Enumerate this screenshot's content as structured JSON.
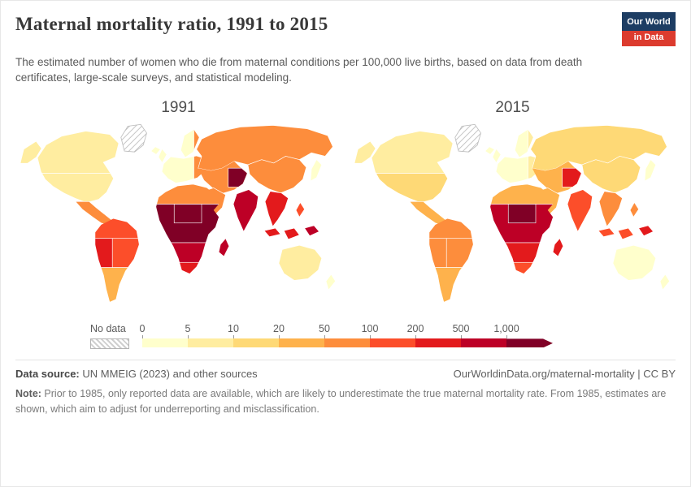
{
  "header": {
    "title": "Maternal mortality ratio, 1991 to 2015",
    "subtitle": "The estimated number of women who die from maternal conditions per 100,000 live births, based on data from death certificates, large-scale surveys, and statistical modeling.",
    "logo": {
      "line1": "Our World",
      "line2": "in Data",
      "bg": "#1d3d63",
      "accent": "#dc3b2e"
    }
  },
  "maps": [
    {
      "year": "1991",
      "regions": {
        "greenland": "nodata",
        "canada": "#ffeda0",
        "usa": "#ffeda0",
        "mexico": "#fd8d3c",
        "sa_north": "#fc4e2a",
        "sa_west": "#e31a1c",
        "sa_east": "#fc4e2a",
        "sa_south": "#feb24c",
        "iceland": "#ffffcc",
        "europe_west": "#ffffcc",
        "europe_east": "#fd8d3c",
        "russia": "#fd8d3c",
        "west_asia": "#fd8d3c",
        "afghanistan": "#800026",
        "arabia": "#fd8d3c",
        "india": "#bd0026",
        "china": "#fd8d3c",
        "se_asia": "#e31a1c",
        "indonesia": "#e31a1c",
        "new_guinea": "#bd0026",
        "philippines": "#fc4e2a",
        "japan": "#ffffcc",
        "africa_north": "#fd8d3c",
        "africa_mid": "#800026",
        "africa_patch": "#800026",
        "africa_lower": "#bd0026",
        "africa_south": "#e31a1c",
        "madagascar": "#bd0026",
        "australia": "#ffeda0",
        "new_zealand": "#ffffcc"
      }
    },
    {
      "year": "2015",
      "regions": {
        "greenland": "nodata",
        "canada": "#ffeda0",
        "usa": "#fed976",
        "mexico": "#feb24c",
        "sa_north": "#fd8d3c",
        "sa_west": "#fd8d3c",
        "sa_east": "#fd8d3c",
        "sa_south": "#feb24c",
        "iceland": "#ffffcc",
        "europe_west": "#ffffcc",
        "europe_east": "#ffeda0",
        "russia": "#fed976",
        "west_asia": "#feb24c",
        "afghanistan": "#e31a1c",
        "arabia": "#feb24c",
        "india": "#fc4e2a",
        "china": "#fed976",
        "se_asia": "#fd8d3c",
        "indonesia": "#fc4e2a",
        "new_guinea": "#e31a1c",
        "philippines": "#fd8d3c",
        "japan": "#ffffcc",
        "africa_north": "#feb24c",
        "africa_mid": "#bd0026",
        "africa_patch": "#800026",
        "africa_lower": "#e31a1c",
        "africa_south": "#fc4e2a",
        "madagascar": "#e31a1c",
        "australia": "#ffffcc",
        "new_zealand": "#ffffcc"
      }
    }
  ],
  "legend": {
    "no_data_label": "No data",
    "ticks": [
      "0",
      "5",
      "10",
      "20",
      "50",
      "100",
      "200",
      "500",
      "1,000"
    ],
    "colors": [
      "#ffffcc",
      "#ffeda0",
      "#fed976",
      "#feb24c",
      "#fd8d3c",
      "#fc4e2a",
      "#e31a1c",
      "#bd0026",
      "#800026"
    ]
  },
  "footer": {
    "source_label": "Data source:",
    "source_text": " UN MMEIG (2023) and other sources",
    "cc_text": "OurWorldinData.org/maternal-mortality | CC BY",
    "note_label": "Note:",
    "note_text": " Prior to 1985, only reported data are available, which are likely to underestimate the true maternal mortality rate. From 1985, estimates are shown, which aim to adjust for underreporting and misclassification."
  },
  "chart_data": {
    "type": "choropleth_map",
    "title": "Maternal mortality ratio, 1991 to 2015",
    "unit": "maternal deaths per 100,000 live births",
    "years": [
      "1991",
      "2015"
    ],
    "legend_position": "bottom",
    "bins": [
      {
        "label": "0–5",
        "color": "#ffffcc"
      },
      {
        "label": "5–10",
        "color": "#ffeda0"
      },
      {
        "label": "10–20",
        "color": "#fed976"
      },
      {
        "label": "20–50",
        "color": "#feb24c"
      },
      {
        "label": "50–100",
        "color": "#fd8d3c"
      },
      {
        "label": "100–200",
        "color": "#fc4e2a"
      },
      {
        "label": "200–500",
        "color": "#e31a1c"
      },
      {
        "label": "500–1,000",
        "color": "#bd0026"
      },
      {
        "label": "1,000+",
        "color": "#800026"
      },
      {
        "label": "No data",
        "color": "hatched"
      }
    ],
    "region_bins": {
      "1991": {
        "Canada / United States": "5–10",
        "Mexico & Central America": "50–100",
        "Northern South America": "100–200",
        "Andean South America": "200–500",
        "Brazil": "100–200",
        "Argentina & Southern Cone": "20–50",
        "Western Europe": "0–5",
        "Eastern Europe": "50–100",
        "Russia": "50–100",
        "Central Asia & Iran": "50–100",
        "Afghanistan": "1,000+",
        "Arabian Peninsula": "50–100",
        "India": "500–1,000",
        "China": "50–100",
        "Southeast Asia": "200–500",
        "Indonesia": "200–500",
        "Papua New Guinea": "500–1,000",
        "Philippines": "100–200",
        "Japan": "0–5",
        "North Africa": "50–100",
        "West & Central Africa": "1,000+",
        "Eastern & Southern Africa": "500–1,000",
        "South Africa": "200–500",
        "Madagascar": "500–1,000",
        "Australia & New Zealand": "0–10",
        "Greenland": "No data"
      },
      "2015": {
        "Canada": "5–10",
        "United States": "10–20",
        "Mexico & Central America": "20–50",
        "South America": "50–100",
        "Argentina & Southern Cone": "20–50",
        "Western Europe": "0–5",
        "Eastern Europe": "5–10",
        "Russia": "10–20",
        "Central Asia & Iran": "20–50",
        "Afghanistan": "200–500",
        "Arabian Peninsula": "20–50",
        "India": "100–200",
        "China": "10–20",
        "Southeast Asia": "50–100",
        "Indonesia": "100–200",
        "Papua New Guinea": "200–500",
        "Philippines": "50–100",
        "Japan": "0–5",
        "North Africa": "20–50",
        "West & Central Africa": "500–1,000 (patches 1,000+)",
        "Eastern & Southern Africa": "200–500",
        "South Africa": "100–200",
        "Madagascar": "200–500",
        "Australia & New Zealand": "0–5",
        "Greenland": "No data"
      }
    }
  }
}
